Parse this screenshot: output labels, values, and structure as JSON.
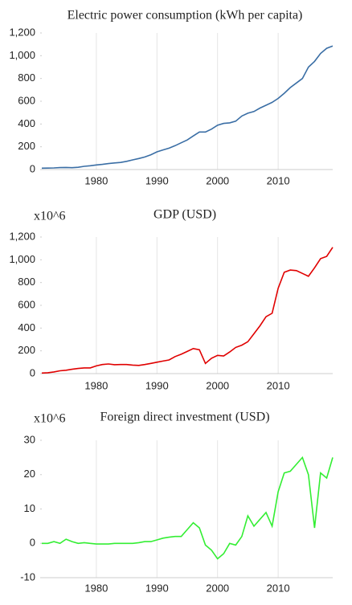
{
  "chart_data": [
    {
      "type": "line",
      "title": "Electric power consumption (kWh per capita)",
      "x": [
        1971,
        1972,
        1973,
        1974,
        1975,
        1976,
        1977,
        1978,
        1979,
        1980,
        1981,
        1982,
        1983,
        1984,
        1985,
        1986,
        1987,
        1988,
        1989,
        1990,
        1991,
        1992,
        1993,
        1994,
        1995,
        1996,
        1997,
        1998,
        1999,
        2000,
        2001,
        2002,
        2003,
        2004,
        2005,
        2006,
        2007,
        2008,
        2009,
        2010,
        2011,
        2012,
        2013,
        2014,
        2015,
        2016,
        2017,
        2018,
        2019
      ],
      "series": [
        {
          "color": "#3a6ea5",
          "values": [
            12,
            13,
            14,
            17,
            18,
            16,
            20,
            28,
            33,
            40,
            45,
            52,
            58,
            62,
            72,
            85,
            97,
            110,
            130,
            155,
            172,
            188,
            210,
            235,
            260,
            295,
            330,
            330,
            355,
            390,
            405,
            410,
            425,
            470,
            495,
            510,
            540,
            565,
            590,
            625,
            670,
            720,
            760,
            800,
            900,
            950,
            1020,
            1065,
            1085
          ]
        }
      ],
      "xlim": [
        1971,
        2019
      ],
      "xticks": [
        1980,
        1990,
        2000,
        2010
      ],
      "ylim": [
        0,
        1200
      ],
      "yticks": [
        0,
        200,
        400,
        600,
        800,
        {
          "value": 1000,
          "label": "1,000"
        },
        {
          "value": 1200,
          "label": "1,200"
        }
      ],
      "grid": true
    },
    {
      "type": "line",
      "title": "GDP (USD)",
      "y_unit": "x10^6",
      "x": [
        1971,
        1972,
        1973,
        1974,
        1975,
        1976,
        1977,
        1978,
        1979,
        1980,
        1981,
        1982,
        1983,
        1984,
        1985,
        1986,
        1987,
        1988,
        1989,
        1990,
        1991,
        1992,
        1993,
        1994,
        1995,
        1996,
        1997,
        1998,
        1999,
        2000,
        2001,
        2002,
        2003,
        2004,
        2005,
        2006,
        2007,
        2008,
        2009,
        2010,
        2011,
        2012,
        2013,
        2014,
        2015,
        2016,
        2017,
        2018,
        2019
      ],
      "series": [
        {
          "color": "#e00000",
          "values": [
            5,
            8,
            15,
            25,
            30,
            38,
            45,
            50,
            50,
            68,
            80,
            85,
            78,
            80,
            80,
            75,
            72,
            80,
            90,
            100,
            110,
            120,
            150,
            170,
            195,
            220,
            210,
            90,
            135,
            160,
            155,
            190,
            230,
            250,
            280,
            350,
            420,
            500,
            530,
            750,
            890,
            910,
            905,
            880,
            855,
            930,
            1010,
            1030,
            1110
          ]
        }
      ],
      "xlim": [
        1971,
        2019
      ],
      "xticks": [
        1980,
        1990,
        2000,
        2010
      ],
      "ylim": [
        0,
        1200
      ],
      "yticks": [
        0,
        200,
        400,
        600,
        800,
        {
          "value": 1000,
          "label": "1,000"
        },
        {
          "value": 1200,
          "label": "1,200"
        }
      ],
      "grid": true
    },
    {
      "type": "line",
      "title": "Foreign direct investment (USD)",
      "y_unit": "x10^6",
      "x": [
        1971,
        1972,
        1973,
        1974,
        1975,
        1976,
        1977,
        1978,
        1979,
        1980,
        1981,
        1982,
        1983,
        1984,
        1985,
        1986,
        1987,
        1988,
        1989,
        1990,
        1991,
        1992,
        1993,
        1994,
        1995,
        1996,
        1997,
        1998,
        1999,
        2000,
        2001,
        2002,
        2003,
        2004,
        2005,
        2006,
        2007,
        2008,
        2009,
        2010,
        2011,
        2012,
        2013,
        2014,
        2015,
        2016,
        2017,
        2018,
        2019
      ],
      "series": [
        {
          "color": "#33ee33",
          "values": [
            0,
            0,
            0.5,
            0,
            1.2,
            0.5,
            0,
            0.2,
            0,
            -0.2,
            -0.2,
            -0.2,
            0,
            0,
            0,
            0,
            0.2,
            0.5,
            0.5,
            1,
            1.5,
            1.8,
            2,
            2,
            4,
            6,
            4.5,
            -0.5,
            -2,
            -4.5,
            -3,
            0,
            -0.5,
            2,
            8,
            5,
            7,
            9,
            5,
            15,
            20.5,
            21,
            23,
            25,
            20,
            4.5,
            20.5,
            19,
            25
          ]
        }
      ],
      "xlim": [
        1971,
        2019
      ],
      "xticks": [
        1980,
        1990,
        2000,
        2010
      ],
      "ylim": [
        -10,
        30
      ],
      "yticks": [
        -10,
        0,
        10,
        20,
        30
      ],
      "grid": true
    }
  ]
}
